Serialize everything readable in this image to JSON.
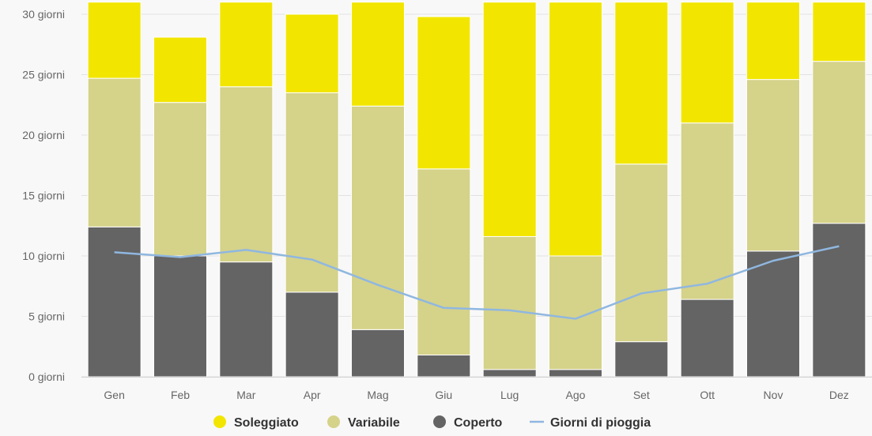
{
  "chart_data": {
    "type": "bar",
    "stacked": true,
    "categories": [
      "Gen",
      "Feb",
      "Mar",
      "Apr",
      "Mag",
      "Giu",
      "Lug",
      "Ago",
      "Set",
      "Ott",
      "Nov",
      "Dez"
    ],
    "ylim": [
      0,
      30
    ],
    "y_ticks": [
      {
        "value": 0,
        "label": "0 giorni"
      },
      {
        "value": 5,
        "label": "5 giorni"
      },
      {
        "value": 10,
        "label": "10 giorni"
      },
      {
        "value": 15,
        "label": "15 giorni"
      },
      {
        "value": 20,
        "label": "20 giorni"
      },
      {
        "value": 25,
        "label": "25 giorni"
      },
      {
        "value": 30,
        "label": "30 giorni"
      }
    ],
    "grid": true,
    "legend_position": "bottom",
    "series": [
      {
        "name": "Coperto",
        "color": "#646464",
        "values": [
          12.4,
          10.0,
          9.5,
          7.0,
          3.9,
          1.8,
          0.6,
          0.6,
          2.9,
          6.4,
          10.4,
          12.7
        ]
      },
      {
        "name": "Variabile",
        "color": "#d5d28a",
        "values": [
          12.3,
          12.7,
          14.5,
          16.5,
          18.5,
          15.4,
          11.0,
          9.4,
          14.7,
          14.6,
          14.2,
          13.4
        ]
      },
      {
        "name": "Soleggiato",
        "color": "#f2e600",
        "values": [
          6.3,
          5.4,
          7.0,
          6.5,
          8.6,
          12.6,
          19.4,
          21.0,
          13.4,
          10.0,
          6.4,
          4.9
        ]
      }
    ],
    "line_series": {
      "name": "Giorni di pioggia",
      "color": "#8fb7e0",
      "values": [
        10.3,
        9.9,
        10.5,
        9.7,
        7.6,
        5.7,
        5.5,
        4.8,
        6.9,
        7.7,
        9.6,
        10.8
      ]
    },
    "legend_order": [
      "Soleggiato",
      "Variabile",
      "Coperto",
      "Giorni di pioggia"
    ]
  }
}
